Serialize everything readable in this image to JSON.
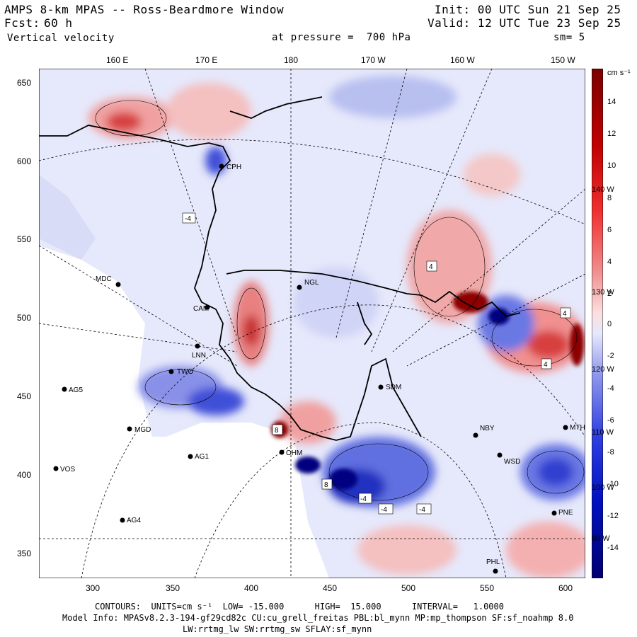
{
  "header": {
    "title": "AMPS 8-km MPAS -- Ross-Beardmore Window",
    "forecast_label": "Fcst:",
    "forecast_value": "60 h",
    "field": "Vertical velocity",
    "init": "Init: 00 UTC Sun 21 Sep 25",
    "valid": "Valid: 12 UTC Tue 23 Sep 25",
    "level": "at pressure =  700 hPa",
    "smoothing": "sm= 5"
  },
  "lon_labels": [
    "160 E",
    "170 E",
    "180",
    "170 W",
    "160 W",
    "150 W"
  ],
  "x_ticks": [
    "300",
    "350",
    "400",
    "450",
    "500",
    "550",
    "600"
  ],
  "y_ticks": [
    "650",
    "600",
    "550",
    "500",
    "450",
    "400",
    "350"
  ],
  "colorbar": {
    "units": "cm s⁻¹",
    "labels": [
      "14",
      "12",
      "10",
      "8",
      "6",
      "4",
      "2",
      "0",
      "-2",
      "-4",
      "-6",
      "-8",
      "-10",
      "-12",
      "-14"
    ],
    "lon_markers": [
      "140 W",
      "130 W",
      "120 W",
      "110 W",
      "100 W",
      "90 W"
    ]
  },
  "stations": [
    {
      "name": "CPH"
    },
    {
      "name": "MDC"
    },
    {
      "name": "NGL"
    },
    {
      "name": "CAM"
    },
    {
      "name": "LNN"
    },
    {
      "name": "TWO"
    },
    {
      "name": "AG5"
    },
    {
      "name": "MGD"
    },
    {
      "name": "AG1"
    },
    {
      "name": "VOS"
    },
    {
      "name": "AG4"
    },
    {
      "name": "SDM"
    },
    {
      "name": "NBY"
    },
    {
      "name": "WSD"
    },
    {
      "name": "MTH"
    },
    {
      "name": "PNE"
    },
    {
      "name": "PHL"
    },
    {
      "name": "OHM"
    }
  ],
  "contour_labels": [
    "-4",
    "4",
    "4",
    "4",
    "-4",
    "-4",
    "-4",
    "8",
    "8"
  ],
  "footer": {
    "contours": "CONTOURS:  UNITS=cm s⁻¹  LOW= -15.000      HIGH=  15.000      INTERVAL=   1.0000",
    "model_info": "Model Info: MPASv8.2.3-194-gf29cd82c CU:cu_grell_freitas PBL:bl_mynn MP:mp_thompson SF:sf_noahmp 8.0",
    "model_info2": "LW:rrtmg_lw SW:rrtmg_sw SFLAY:sf_mynn"
  },
  "colors": {
    "red_dark": "#8b0000",
    "red": "#e03030",
    "pink": "#f4b4b4",
    "white": "#ffffff",
    "lightblue": "#c8cef4",
    "blue": "#3040d8",
    "navy": "#000080"
  }
}
